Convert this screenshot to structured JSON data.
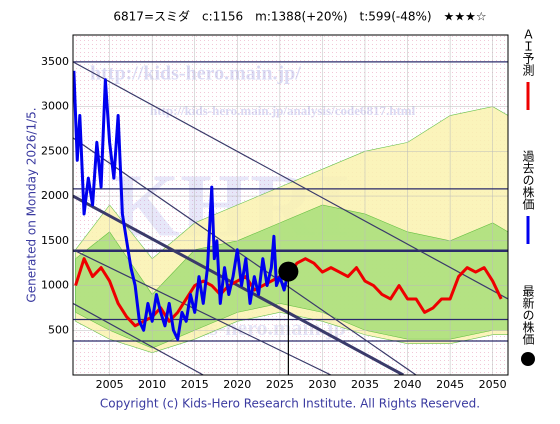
{
  "chart_data": {
    "type": "line",
    "title": "6817=スミダ　c:1156　m:1388(+20%)　t:599(-48%)　★★★☆",
    "side_note": "Generated on Monday 2026/1/5.",
    "footer": "Copyright (c) Kids-Hero Research Institute. All Rights Reserved.",
    "watermarks": [
      "http://kids-hero.main.jp/",
      "http://kids-hero.main.jp/analysis/code6817.html",
      "KHRI",
      "http://kids-hero.main.jp"
    ],
    "xlim": [
      2000.7,
      2051.8
    ],
    "ylim": [
      0,
      3800
    ],
    "xticks": [
      2005,
      2010,
      2015,
      2020,
      2025,
      2030,
      2035,
      2040,
      2045,
      2050
    ],
    "yticks": [
      500,
      1000,
      1500,
      2000,
      2500,
      3000,
      3500
    ],
    "grid": true,
    "bands": [
      {
        "color": "#fbf3b0",
        "x": [
          2001,
          2005,
          2010,
          2015,
          2020,
          2025,
          2030,
          2035,
          2040,
          2045,
          2050,
          2051.8
        ],
        "upper": [
          1400,
          1900,
          1300,
          1700,
          1900,
          2100,
          2300,
          2500,
          2600,
          2900,
          3000,
          2900
        ],
        "lower": [
          600,
          400,
          250,
          400,
          600,
          700,
          600,
          450,
          350,
          350,
          450,
          450
        ]
      },
      {
        "color": "#a8e07a",
        "x": [
          2001,
          2005,
          2010,
          2015,
          2020,
          2025,
          2030,
          2035,
          2040,
          2045,
          2050,
          2051.8
        ],
        "upper": [
          1300,
          1600,
          900,
          1400,
          1500,
          1700,
          1900,
          1800,
          1600,
          1500,
          1700,
          1600
        ],
        "lower": [
          700,
          500,
          300,
          500,
          700,
          800,
          700,
          500,
          400,
          400,
          500,
          500
        ]
      }
    ],
    "hlines": [
      3500,
      2080,
      1388,
      620,
      380
    ],
    "trendlines": [
      {
        "x": [
          2000.7,
          2051.8
        ],
        "values": [
          3500,
          850
        ]
      },
      {
        "x": [
          2000.7,
          2041
        ],
        "values": [
          2650,
          0
        ]
      },
      {
        "x": [
          2000.7,
          2039.5
        ],
        "values": [
          2000,
          0
        ]
      },
      {
        "x": [
          2000.7,
          2031
        ],
        "values": [
          1400,
          0
        ]
      },
      {
        "x": [
          2000.7,
          2016
        ],
        "values": [
          800,
          0
        ]
      }
    ],
    "series": [
      {
        "name": "ＡＩ予測",
        "color": "#ee0000",
        "x": [
          2001,
          2002,
          2003,
          2004,
          2005,
          2006,
          2007,
          2008,
          2009,
          2010,
          2011,
          2012,
          2013,
          2014,
          2015,
          2016,
          2017,
          2018,
          2019,
          2020,
          2021,
          2022,
          2023,
          2024,
          2025,
          2026,
          2027,
          2028,
          2029,
          2030,
          2031,
          2032,
          2033,
          2034,
          2035,
          2036,
          2037,
          2038,
          2039,
          2040,
          2041,
          2042,
          2043,
          2044,
          2045,
          2046,
          2047,
          2048,
          2049,
          2050,
          2051
        ],
        "values": [
          1000,
          1300,
          1100,
          1200,
          1050,
          800,
          650,
          550,
          600,
          650,
          750,
          600,
          700,
          850,
          1000,
          1050,
          1000,
          900,
          1000,
          1050,
          1100,
          950,
          1000,
          1050,
          1100,
          1100,
          1250,
          1300,
          1250,
          1150,
          1200,
          1150,
          1100,
          1200,
          1050,
          1000,
          900,
          850,
          1000,
          850,
          850,
          700,
          750,
          850,
          850,
          1100,
          1200,
          1150,
          1200,
          1050,
          850
        ]
      },
      {
        "name": "過去の株価",
        "color": "#0000ee",
        "x": [
          2000.8,
          2001.2,
          2001.5,
          2002,
          2002.5,
          2003,
          2003.5,
          2004,
          2004.5,
          2005,
          2005.5,
          2006,
          2006.5,
          2007,
          2007.5,
          2008,
          2008.5,
          2009,
          2009.5,
          2010,
          2010.5,
          2011,
          2011.5,
          2012,
          2012.5,
          2013,
          2013.5,
          2014,
          2014.5,
          2015,
          2015.5,
          2016,
          2016.5,
          2017,
          2017.3,
          2017.6,
          2018,
          2018.5,
          2019,
          2019.5,
          2020,
          2020.5,
          2021,
          2021.5,
          2022,
          2022.5,
          2023,
          2023.5,
          2024,
          2024.3,
          2024.6,
          2025,
          2025.5,
          2026
        ],
        "values": [
          3400,
          2400,
          2900,
          1800,
          2200,
          1900,
          2600,
          2100,
          3300,
          2600,
          2200,
          2900,
          1800,
          1500,
          1200,
          1000,
          600,
          500,
          800,
          600,
          900,
          700,
          550,
          800,
          500,
          400,
          700,
          600,
          900,
          700,
          1100,
          800,
          1200,
          2100,
          1300,
          1500,
          800,
          1200,
          900,
          1100,
          1400,
          1000,
          1300,
          800,
          1100,
          900,
          1300,
          1000,
          1200,
          1550,
          1000,
          1100,
          950,
          1156
        ]
      }
    ],
    "current": {
      "name": "最新の株価",
      "color": "#000000",
      "x": 2026,
      "value": 1156
    }
  }
}
